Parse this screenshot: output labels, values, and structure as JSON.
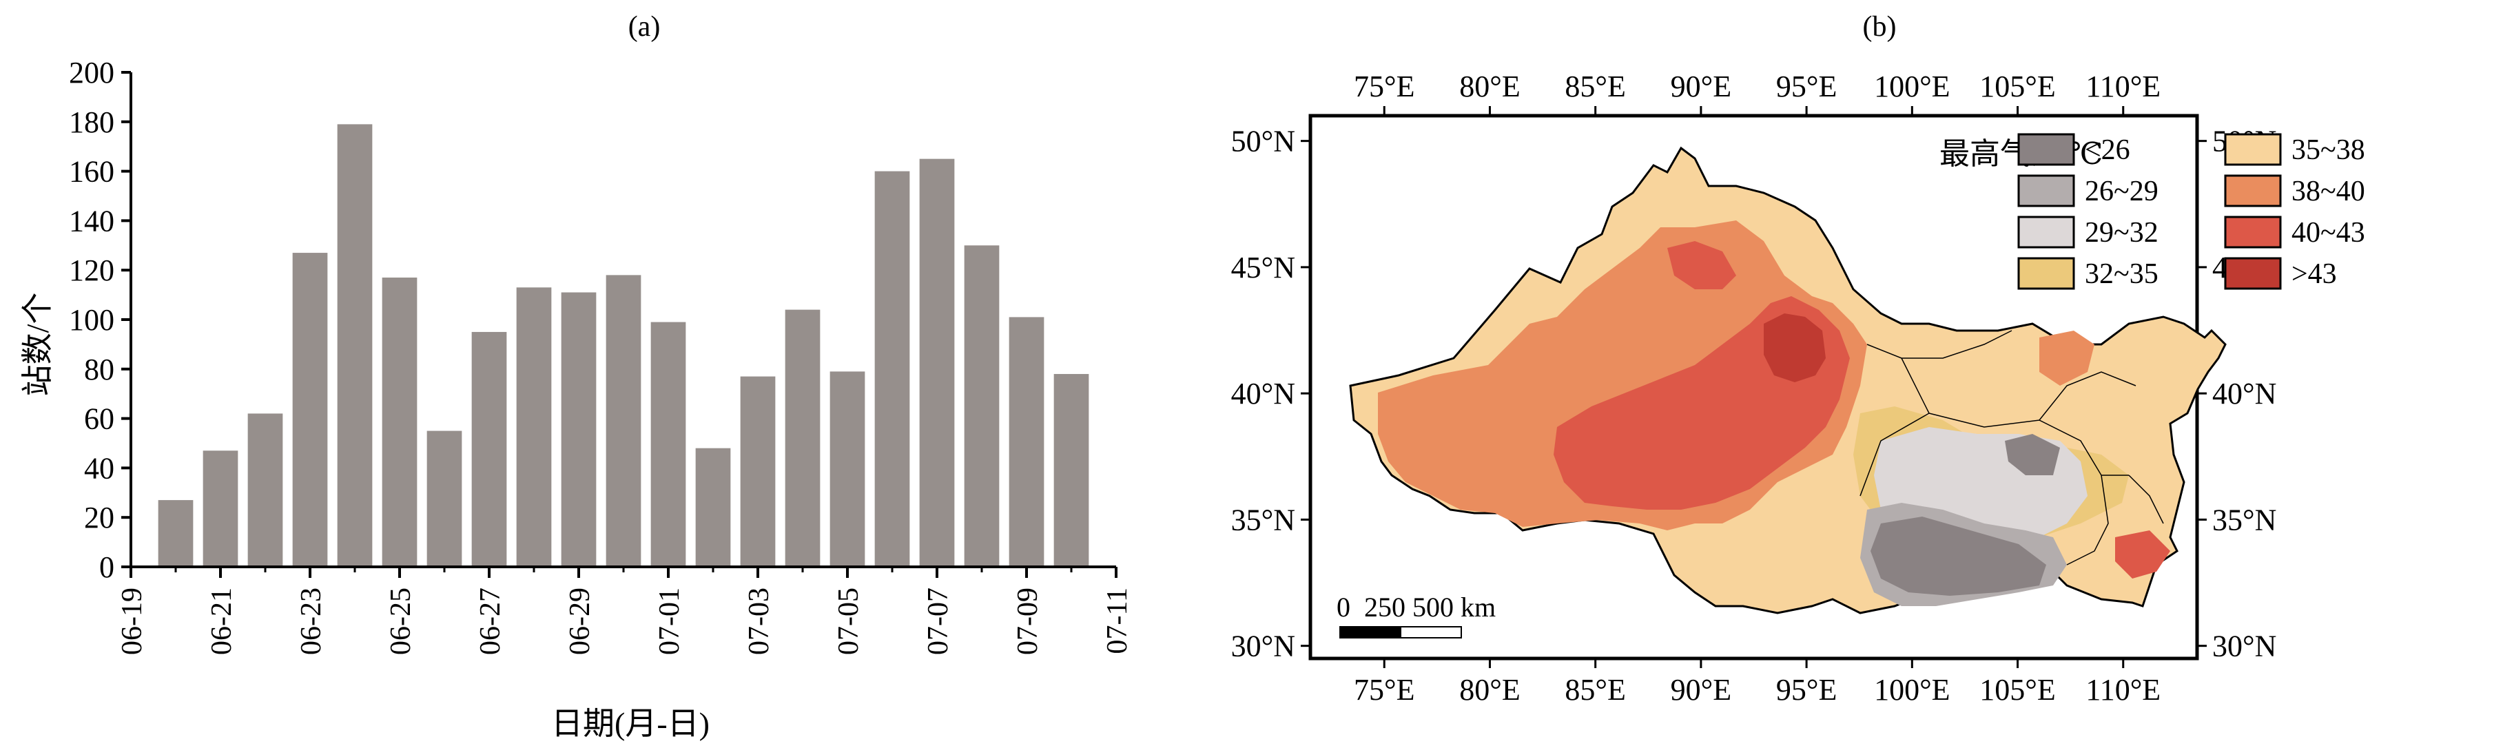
{
  "chart_data": [
    {
      "type": "bar",
      "panel_label": "(a)",
      "xlabel": "日期(月-日)",
      "ylabel": "站数/个",
      "ylim": [
        0,
        200
      ],
      "yticks": [
        0,
        20,
        40,
        60,
        80,
        100,
        120,
        140,
        160,
        180,
        200
      ],
      "xticks": [
        "06-19",
        "06-21",
        "06-23",
        "06-25",
        "06-27",
        "06-29",
        "07-01",
        "07-03",
        "07-05",
        "07-07",
        "07-09",
        "07-11"
      ],
      "bar_color": "#968f8c",
      "categories": [
        "06-20",
        "06-21",
        "06-22",
        "06-23",
        "06-24",
        "06-25",
        "06-26",
        "06-27",
        "06-28",
        "06-29",
        "06-30",
        "07-01",
        "07-02",
        "07-03",
        "07-04",
        "07-05",
        "07-06",
        "07-07",
        "07-08",
        "07-09",
        "07-10"
      ],
      "values": [
        27,
        47,
        62,
        127,
        179,
        117,
        55,
        95,
        113,
        111,
        118,
        99,
        48,
        77,
        104,
        79,
        160,
        165,
        130,
        101,
        78
      ]
    },
    {
      "type": "map",
      "panel_label": "(b)",
      "lon_ticks_top": [
        "75°E",
        "80°E",
        "85°E",
        "90°E",
        "95°E",
        "100°E",
        "105°E",
        "110°E"
      ],
      "lon_ticks_bottom": [
        "75°E",
        "80°E",
        "85°E",
        "90°E",
        "95°E",
        "100°E",
        "105°E",
        "110°E"
      ],
      "lat_ticks_left": [
        "50°N",
        "45°N",
        "40°N",
        "35°N",
        "30°N"
      ],
      "lat_ticks_right": [
        "50°N",
        "45°N",
        "40°N",
        "35°N",
        "30°N"
      ],
      "lon_range": [
        71.5,
        113.5
      ],
      "lat_range": [
        29.5,
        51
      ],
      "legend": {
        "title": "最高气温/℃",
        "placement": "top-right",
        "items": [
          {
            "label": "<26",
            "color": "#8a8283"
          },
          {
            "label": "26~29",
            "color": "#b3adad"
          },
          {
            "label": "29~32",
            "color": "#ddd8d8"
          },
          {
            "label": "32~35",
            "color": "#ecc97b"
          },
          {
            "label": "35~38",
            "color": "#f8d49c"
          },
          {
            "label": "38~40",
            "color": "#ea8d5e"
          },
          {
            "label": "40~43",
            "color": "#dd5848"
          },
          {
            "label": ">43",
            "color": "#bf3a31"
          }
        ]
      },
      "scalebar": {
        "label": "0  250 500 km"
      }
    }
  ]
}
